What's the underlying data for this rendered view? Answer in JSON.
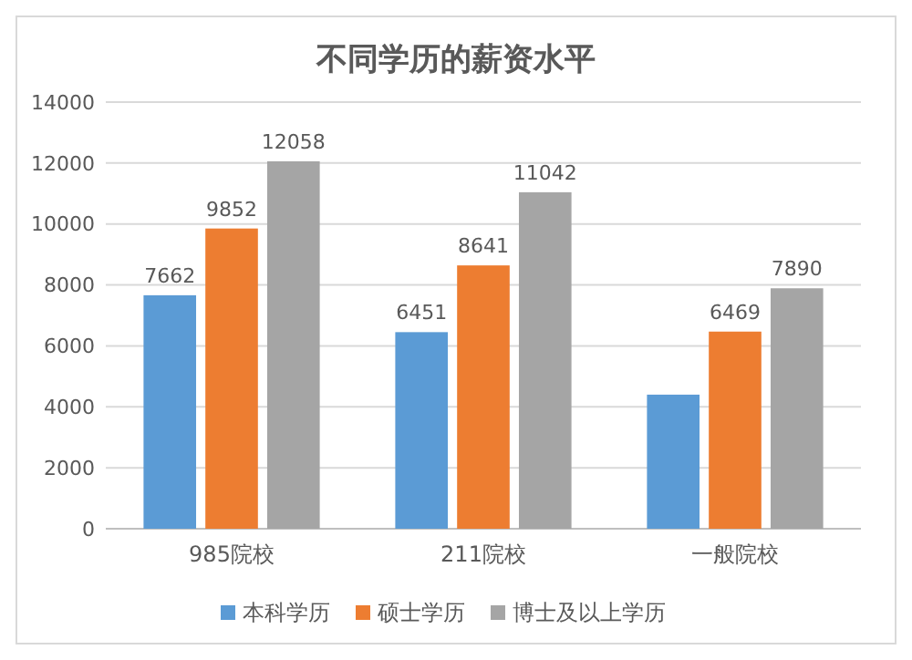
{
  "chart_data": {
    "type": "bar",
    "title": "不同学历的薪资水平",
    "categories": [
      "985院校",
      "211院校",
      "一般院校"
    ],
    "series": [
      {
        "name": "本科学历",
        "color": "#5b9bd5",
        "values": [
          7662,
          6451,
          4400
        ],
        "value_labels": [
          "7662",
          "6451",
          null
        ]
      },
      {
        "name": "硕士学历",
        "color": "#ed7d31",
        "values": [
          9852,
          8641,
          6469
        ],
        "value_labels": [
          "9852",
          "8641",
          "6469"
        ]
      },
      {
        "name": "博士及以上学历",
        "color": "#a5a5a5",
        "values": [
          12058,
          11042,
          7890
        ],
        "value_labels": [
          "12058",
          "11042",
          "7890"
        ]
      }
    ],
    "ylim": [
      0,
      14000
    ],
    "yticks": [
      0,
      2000,
      4000,
      6000,
      8000,
      10000,
      12000,
      14000
    ],
    "grid": "y",
    "legend": "bottom"
  }
}
